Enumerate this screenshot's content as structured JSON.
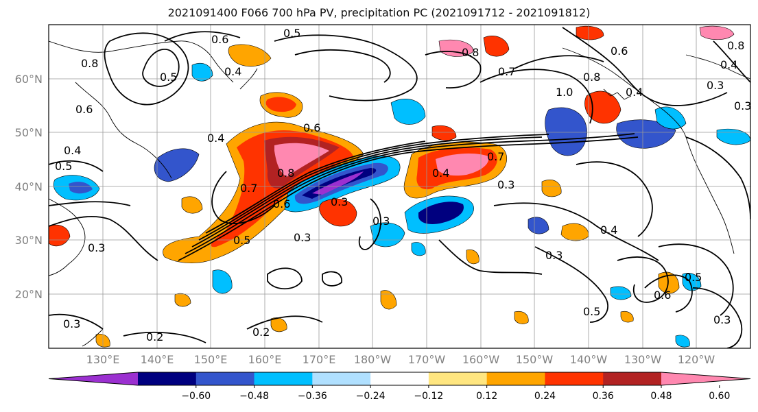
{
  "title": "2021091400 F066 700 hPa PV, precipitation PC (2021091712 - 2021091812)",
  "map": {
    "lat_labels": [
      "60°N",
      "50°N",
      "40°N",
      "30°N",
      "20°N"
    ],
    "lon_labels": [
      "130°E",
      "140°E",
      "150°E",
      "160°E",
      "170°E",
      "180°W",
      "170°W",
      "160°W",
      "150°W",
      "140°W",
      "130°W",
      "120°W"
    ],
    "label_color": "#808080",
    "contour_labels": [
      "0.6",
      "0.5",
      "0.8",
      "0.4",
      "0.5",
      "0.8",
      "0.6",
      "0.7",
      "1.0",
      "0.4",
      "0.8",
      "0.7",
      "0.4",
      "0.6",
      "0.5",
      "0.4",
      "0.8",
      "0.7",
      "0.3",
      "0.4",
      "0.6",
      "0.3",
      "0.3",
      "0.3",
      "0.5",
      "0.3",
      "0.3",
      "0.4",
      "0.5",
      "0.5",
      "0.6",
      "0.3",
      "0.3",
      "0.2",
      "0.2",
      "0.3",
      "0.8",
      "0.6",
      "0.4",
      "0.3"
    ]
  },
  "colorbar": {
    "colors": [
      "#9b30d0",
      "#00007f",
      "#3355cc",
      "#00bfff",
      "#b0e0ff",
      "#ffffff",
      "#ffe680",
      "#ffa500",
      "#ff3300",
      "#b22222",
      "#ff88b0"
    ],
    "tick_labels": [
      "−0.60",
      "−0.48",
      "−0.36",
      "−0.24",
      "−0.12",
      "0.12",
      "0.24",
      "0.36",
      "0.48",
      "0.60"
    ]
  }
}
